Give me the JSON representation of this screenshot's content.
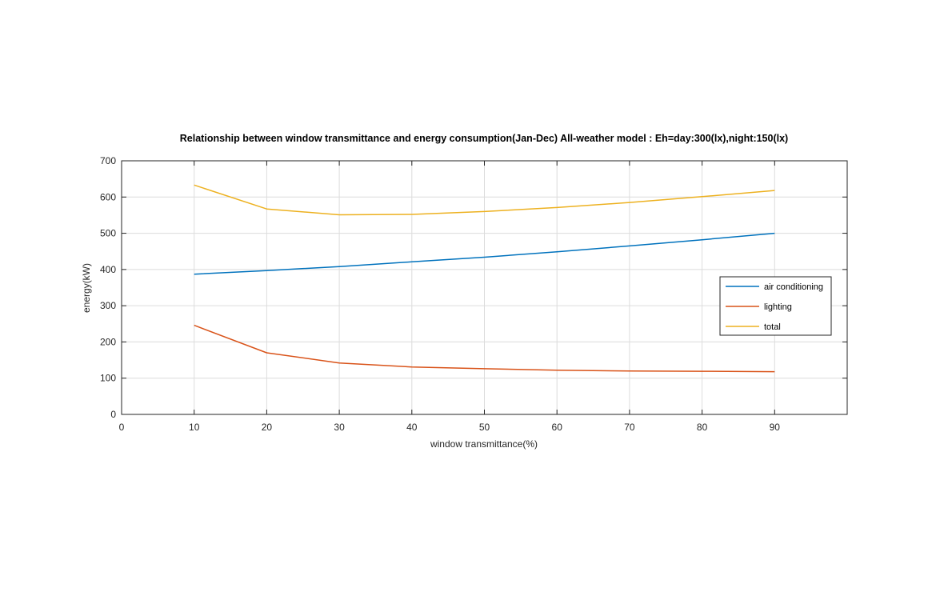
{
  "chart_data": {
    "type": "line",
    "title": "Relationship between window transmittance and energy consumption(Jan-Dec) All-weather model : Eh=day:300(lx),night:150(lx)",
    "xlabel": "window transmittance(%)",
    "ylabel": "energy(kW)",
    "xlim": [
      0,
      100
    ],
    "ylim": [
      0,
      700
    ],
    "xticks": [
      0,
      10,
      20,
      30,
      40,
      50,
      60,
      70,
      80,
      90
    ],
    "yticks": [
      0,
      100,
      200,
      300,
      400,
      500,
      600,
      700
    ],
    "grid": true,
    "legend_position": "right",
    "x": [
      10,
      20,
      30,
      40,
      50,
      60,
      70,
      80,
      90
    ],
    "series": [
      {
        "name": "air conditioning",
        "color": "#0072BD",
        "values": [
          387,
          397,
          408,
          421,
          434,
          449,
          465,
          482,
          500
        ]
      },
      {
        "name": "lighting",
        "color": "#D95319",
        "values": [
          246,
          170,
          142,
          131,
          126,
          122,
          120,
          119,
          118
        ]
      },
      {
        "name": "total",
        "color": "#EDB120",
        "values": [
          633,
          567,
          551,
          552,
          560,
          571,
          585,
          601,
          618
        ]
      }
    ]
  }
}
